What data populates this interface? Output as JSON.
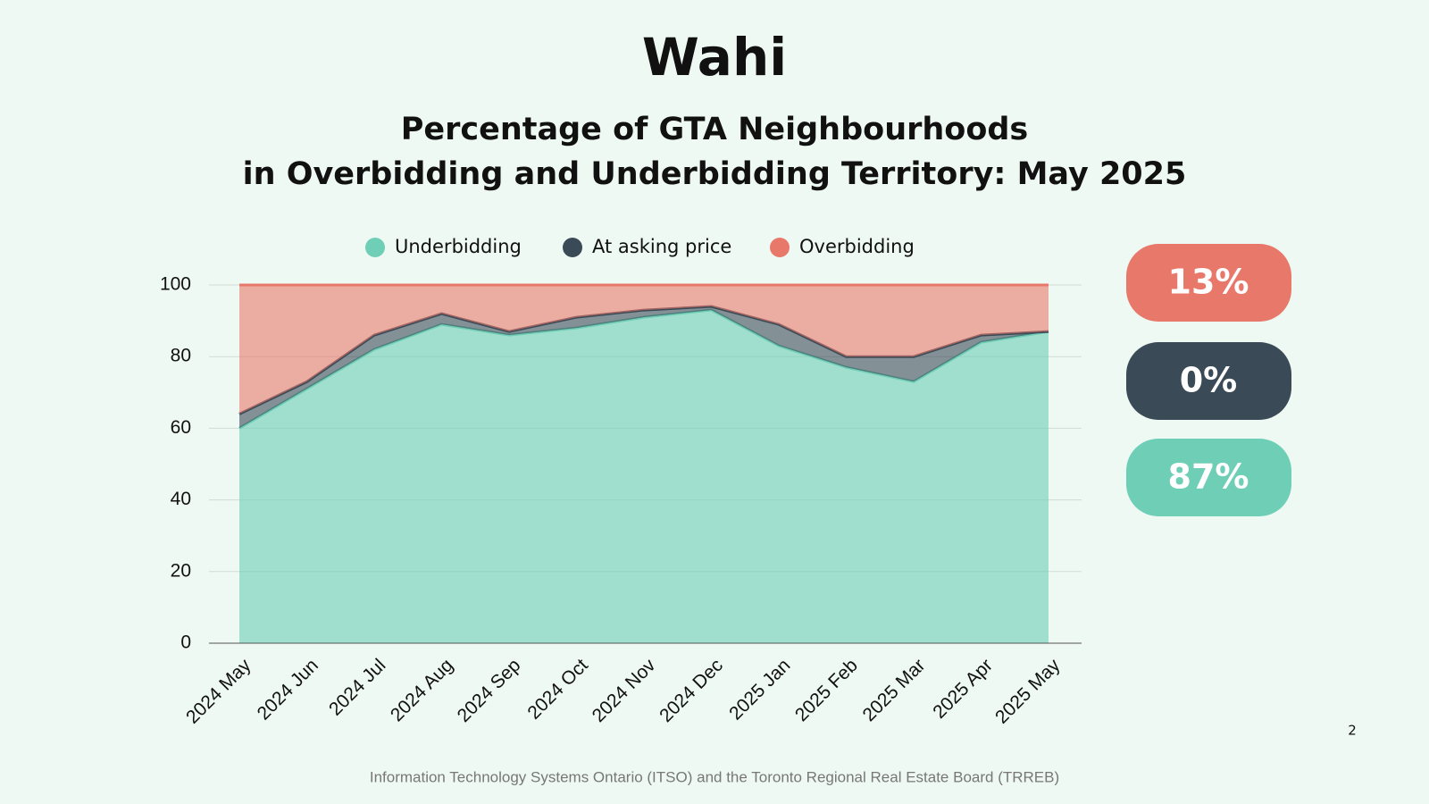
{
  "logo": "Wahi",
  "chart_data": {
    "type": "stacked_area",
    "title": [
      "Percentage of GTA Neighbourhoods",
      "in Overbidding and Underbidding Territory: May 2025"
    ],
    "categories": [
      "2024 May",
      "2024 Jun",
      "2024 Jul",
      "2024 Aug",
      "2024 Sep",
      "2024 Oct",
      "2024 Nov",
      "2024 Dec",
      "2025 Jan",
      "2025 Feb",
      "2025 Mar",
      "2025 Apr",
      "2025 May"
    ],
    "series": [
      {
        "name": "Underbidding",
        "color": "#6fcfb6",
        "values": [
          60,
          71,
          82,
          89,
          86,
          88,
          91,
          93,
          83,
          77,
          73,
          84,
          87
        ]
      },
      {
        "name": "At asking price",
        "color": "#3a4a56",
        "values": [
          4,
          2,
          4,
          3,
          1,
          3,
          2,
          1,
          6,
          3,
          7,
          2,
          0
        ]
      },
      {
        "name": "Overbidding",
        "color": "#e8786a",
        "values": [
          36,
          27,
          14,
          8,
          13,
          9,
          7,
          6,
          11,
          20,
          20,
          14,
          13
        ]
      }
    ],
    "ylim": [
      0,
      100
    ],
    "yticks": [
      0,
      20,
      40,
      60,
      80,
      100
    ],
    "grid": true,
    "legend": "top"
  },
  "callouts": [
    "13%",
    "0%",
    "87%"
  ],
  "page_number": "2",
  "source": "Information Technology Systems Ontario (ITSO) and the Toronto Regional Real Estate Board (TRREB)"
}
